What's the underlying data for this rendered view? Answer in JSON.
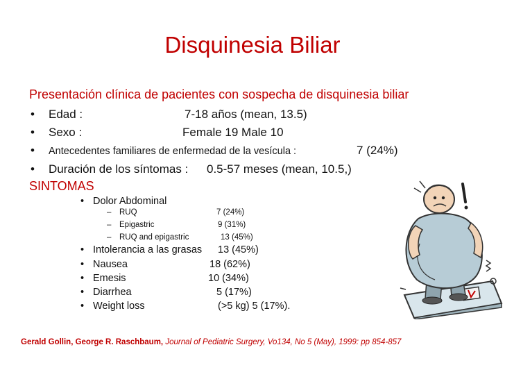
{
  "title": "Disquinesia Biliar",
  "subtitle": "Presentación clínica de pacientes con sospecha de disquinesia biliar",
  "bullets": [
    {
      "label": "Edad :",
      "value": "7-18 años (mean, 13.5)"
    },
    {
      "label": "Sexo  :",
      "value": "Female 19    Male 10"
    },
    {
      "label": "Antecedentes familiares de enfermedad de la vesícula :",
      "value": "7 (24%)"
    },
    {
      "label": "Duración de los síntomas :",
      "value": "0.5-57 meses (mean, 10.5,)"
    }
  ],
  "sintomas_heading": "SINTOMAS",
  "symptoms": {
    "dolor": {
      "label": "Dolor Abdominal"
    },
    "sub_items": [
      {
        "label": "RUQ",
        "value": "7 (24%)"
      },
      {
        "label": "Epigastric",
        "value": "9 (31%)"
      },
      {
        "label": "RUQ and epigastric",
        "value": "13 (45%)"
      }
    ],
    "items": [
      {
        "label": "Intolerancia a las grasas",
        "value": "13 (45%)"
      },
      {
        "label": "Nausea",
        "value": "18 (62%)"
      },
      {
        "label": "Emesis",
        "value": "10 (34%)"
      },
      {
        "label": "Diarrhea",
        "value": "5 (17%)"
      },
      {
        "label": "Weight loss",
        "value": "(>5 kg) 5 (17%)."
      }
    ]
  },
  "citation": {
    "authors": "Gerald Gollin, George R. Raschbaum,",
    "journal": "Journal of Pediatric Surgery, Vo134, No 5 (May), 1999: pp 854-857"
  },
  "colors": {
    "accent": "#c00000",
    "text": "#111111"
  },
  "illustration": {
    "icon": "overweight-man-on-scale-icon"
  }
}
